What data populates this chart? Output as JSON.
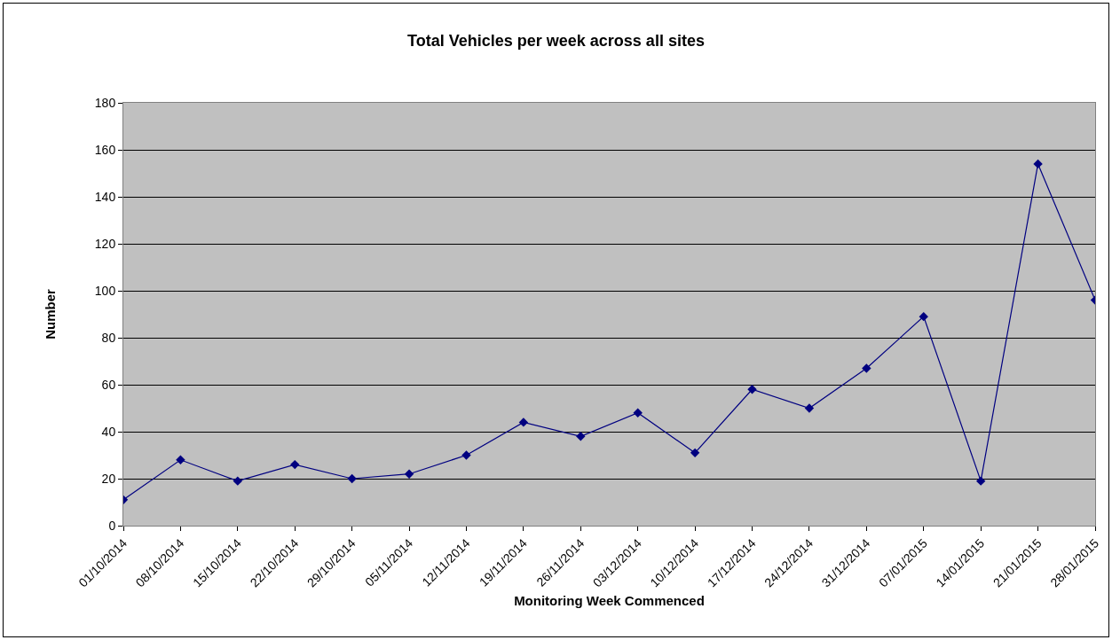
{
  "chart_data": {
    "type": "line",
    "title": "Total Vehicles per week across all sites",
    "xlabel": "Monitoring Week Commenced",
    "ylabel": "Number",
    "categories": [
      "01/10/2014",
      "08/10/2014",
      "15/10/2014",
      "22/10/2014",
      "29/10/2014",
      "05/11/2014",
      "12/11/2014",
      "19/11/2014",
      "26/11/2014",
      "03/12/2014",
      "10/12/2014",
      "17/12/2014",
      "24/12/2014",
      "31/12/2014",
      "07/01/2015",
      "14/01/2015",
      "21/01/2015",
      "28/01/2015"
    ],
    "series": [
      {
        "color": "#000080",
        "values": [
          11,
          28,
          19,
          26,
          20,
          22,
          30,
          44,
          38,
          48,
          31,
          58,
          50,
          67,
          89,
          19,
          154,
          96
        ]
      }
    ],
    "ylim": [
      0,
      180
    ],
    "yticks": [
      0,
      20,
      40,
      60,
      80,
      100,
      120,
      140,
      160,
      180
    ],
    "grid": "y",
    "marker": "diamond",
    "line_style": "solid"
  }
}
